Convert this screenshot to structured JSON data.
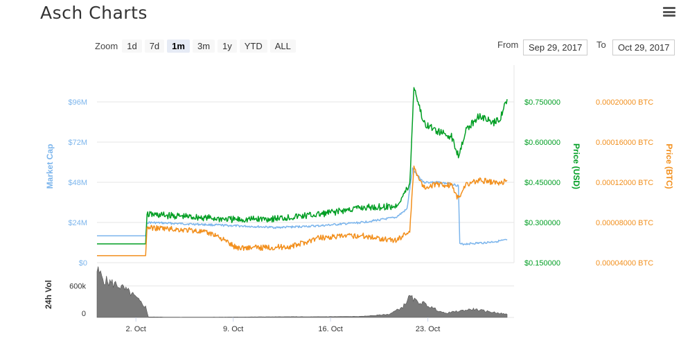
{
  "app": {
    "title": "Asch Charts"
  },
  "zoom": {
    "label": "Zoom",
    "buttons": [
      "1d",
      "7d",
      "1m",
      "3m",
      "1y",
      "YTD",
      "ALL"
    ],
    "selected": "1m"
  },
  "range": {
    "from_label": "From",
    "from_value": "Sep 29, 2017",
    "to_label": "To",
    "to_value": "Oct 29, 2017"
  },
  "icons": {
    "menu": "hamburger-menu-icon"
  },
  "colors": {
    "market_cap": "#7cb5ec",
    "price_usd": "#009e23",
    "price_btc": "#f28f1c",
    "volume": "#7a7a7a"
  },
  "chart_data": [
    {
      "type": "line",
      "x_ticks": [
        "2. Oct",
        "9. Oct",
        "16. Oct",
        "23. Oct"
      ],
      "axes": {
        "left": {
          "label": "Market Cap",
          "ticks": [
            "$0",
            "$24M",
            "$48M",
            "$72M",
            "$96M"
          ],
          "range": [
            0,
            96000000
          ]
        },
        "right1": {
          "label": "Price (USD)",
          "ticks": [
            "$0.150000",
            "$0.300000",
            "$0.450000",
            "$0.600000",
            "$0.750000"
          ],
          "range": [
            0.15,
            0.75
          ]
        },
        "right2": {
          "label": "Price (BTC)",
          "ticks": [
            "0.00004000 BTC",
            "0.00008000 BTC",
            "0.00012000 BTC",
            "0.00016000 BTC",
            "0.00020000 BTC"
          ],
          "range": [
            4e-05,
            0.0002
          ]
        }
      },
      "grid": true,
      "series": [
        {
          "name": "Market Cap",
          "axis": "left",
          "values": [
            [
              0,
              16000000
            ],
            [
              3.5,
              16000000
            ],
            [
              3.6,
              24000000
            ],
            [
              7,
              23000000
            ],
            [
              10,
              22000000
            ],
            [
              13,
              21000000
            ],
            [
              16,
              22000000
            ],
            [
              19,
              24000000
            ],
            [
              21.5,
              27000000
            ],
            [
              22.3,
              32000000
            ],
            [
              22.7,
              56000000
            ],
            [
              23.5,
              48000000
            ],
            [
              24.5,
              48000000
            ],
            [
              25.5,
              47000000
            ],
            [
              26,
              46000000
            ],
            [
              26.1,
              11000000
            ],
            [
              27,
              11500000
            ],
            [
              28,
              12000000
            ],
            [
              29,
              13000000
            ],
            [
              29.5,
              13500000
            ]
          ]
        },
        {
          "name": "Price (USD)",
          "axis": "right1",
          "values": [
            [
              0,
              0.22
            ],
            [
              3.5,
              0.22
            ],
            [
              3.6,
              0.33
            ],
            [
              7,
              0.32
            ],
            [
              10,
              0.31
            ],
            [
              13,
              0.315
            ],
            [
              16,
              0.33
            ],
            [
              19,
              0.355
            ],
            [
              21.5,
              0.36
            ],
            [
              22.5,
              0.44
            ],
            [
              22.8,
              0.81
            ],
            [
              23.5,
              0.67
            ],
            [
              24.5,
              0.64
            ],
            [
              25.5,
              0.62
            ],
            [
              26,
              0.55
            ],
            [
              26.5,
              0.64
            ],
            [
              27.5,
              0.7
            ],
            [
              28.5,
              0.67
            ],
            [
              29,
              0.69
            ],
            [
              29.5,
              0.76
            ]
          ]
        },
        {
          "name": "Price (BTC)",
          "axis": "right2",
          "values": [
            [
              0,
              4.7e-05
            ],
            [
              3.5,
              4.7e-05
            ],
            [
              3.6,
              7.5e-05
            ],
            [
              7,
              7.2e-05
            ],
            [
              8.5,
              6.8e-05
            ],
            [
              10,
              5.5e-05
            ],
            [
              12,
              5.5e-05
            ],
            [
              14,
              5.6e-05
            ],
            [
              16,
              6.5e-05
            ],
            [
              19,
              6.7e-05
            ],
            [
              21.5,
              6.2e-05
            ],
            [
              22.5,
              7.2e-05
            ],
            [
              22.8,
              0.000135
            ],
            [
              23.5,
              0.000115
            ],
            [
              24.5,
              0.000118
            ],
            [
              25.5,
              0.000117
            ],
            [
              26,
              0.000103
            ],
            [
              26.5,
              0.000118
            ],
            [
              27.5,
              0.000122
            ],
            [
              29,
              0.000119
            ],
            [
              29.5,
              0.000122
            ]
          ]
        }
      ]
    },
    {
      "type": "area",
      "axes": {
        "left": {
          "label": "24h Vol",
          "ticks": [
            "0",
            "600k"
          ],
          "range": [
            0,
            900000
          ]
        }
      },
      "series": [
        {
          "name": "24h Vol",
          "values": [
            [
              0,
              900000
            ],
            [
              0.6,
              700000
            ],
            [
              1.5,
              620000
            ],
            [
              2.5,
              450000
            ],
            [
              3.5,
              200000
            ],
            [
              3.7,
              10000
            ],
            [
              6,
              5000
            ],
            [
              10,
              8000
            ],
            [
              14.5,
              15000
            ],
            [
              15,
              12000
            ],
            [
              19,
              20000
            ],
            [
              21,
              60000
            ],
            [
              22,
              200000
            ],
            [
              22.5,
              400000
            ],
            [
              23,
              300000
            ],
            [
              23.5,
              270000
            ],
            [
              24,
              200000
            ],
            [
              25,
              80000
            ],
            [
              26,
              120000
            ],
            [
              27,
              160000
            ],
            [
              28,
              120000
            ],
            [
              29,
              80000
            ],
            [
              29.5,
              60000
            ]
          ]
        }
      ]
    }
  ]
}
